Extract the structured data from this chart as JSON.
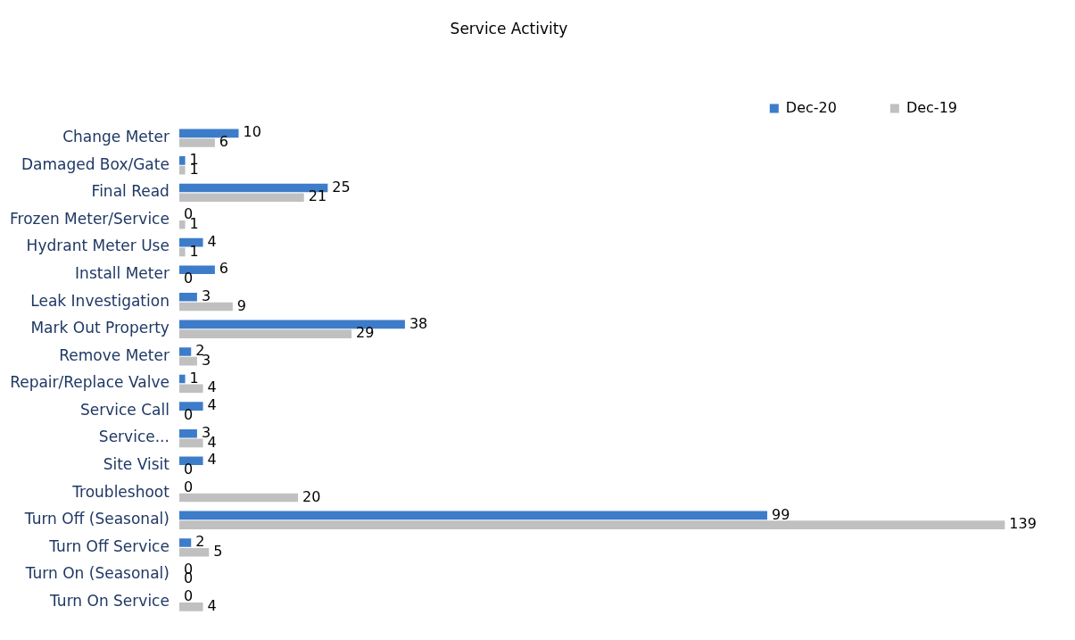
{
  "chart_data": {
    "type": "bar",
    "orientation": "horizontal",
    "title": "Service Activity",
    "categories": [
      "Change Meter",
      "Damaged Box/Gate",
      "Final Read",
      "Frozen Meter/Service",
      "Hydrant Meter Use",
      "Install Meter",
      "Leak Investigation",
      "Mark Out Property",
      "Remove Meter",
      "Repair/Replace Valve",
      "Service Call",
      "Service...",
      "Site Visit",
      "Troubleshoot",
      "Turn Off (Seasonal)",
      "Turn Off Service",
      "Turn On (Seasonal)",
      "Turn On Service"
    ],
    "series": [
      {
        "name": "Dec-20",
        "color": "#3d7cc9",
        "values": [
          10,
          1,
          25,
          0,
          4,
          6,
          3,
          38,
          2,
          1,
          4,
          3,
          4,
          0,
          99,
          2,
          0,
          0
        ]
      },
      {
        "name": "Dec-19",
        "color": "#c0c0c0",
        "values": [
          6,
          1,
          21,
          1,
          1,
          0,
          9,
          29,
          3,
          4,
          0,
          4,
          0,
          20,
          139,
          5,
          0,
          4
        ]
      }
    ],
    "data_labels": true,
    "legend": "top right",
    "grid": false
  }
}
